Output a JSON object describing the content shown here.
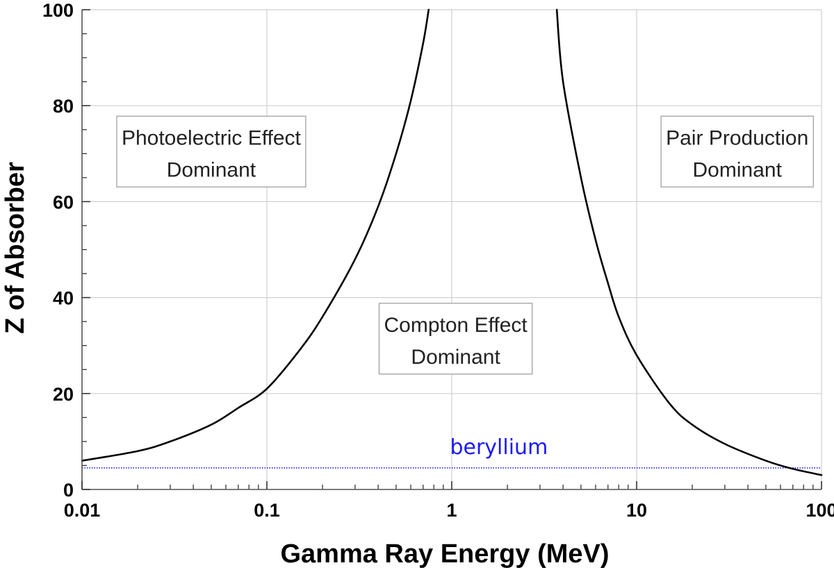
{
  "chart_data": {
    "type": "line",
    "title": "",
    "xlabel": "Gamma Ray Energy (MeV)",
    "ylabel": "Z of Absorber",
    "xscale": "log",
    "xlim": [
      0.01,
      100
    ],
    "ylim": [
      0,
      100
    ],
    "grid": true,
    "xticks": [
      {
        "value": 0.01,
        "label": "0.01"
      },
      {
        "value": 0.1,
        "label": "0.1"
      },
      {
        "value": 1,
        "label": "1"
      },
      {
        "value": 10,
        "label": "10"
      },
      {
        "value": 100,
        "label": "100"
      }
    ],
    "yticks": [
      {
        "value": 0,
        "label": "0"
      },
      {
        "value": 20,
        "label": "20"
      },
      {
        "value": 40,
        "label": "40"
      },
      {
        "value": 60,
        "label": "60"
      },
      {
        "value": 80,
        "label": "80"
      },
      {
        "value": 100,
        "label": "100"
      }
    ],
    "series": [
      {
        "name": "photoelectric-compton boundary",
        "color": "#000000",
        "x": [
          0.01,
          0.02,
          0.03,
          0.05,
          0.07,
          0.1,
          0.15,
          0.2,
          0.3,
          0.4,
          0.5,
          0.6,
          0.7,
          0.75
        ],
        "y": [
          6,
          8,
          10,
          13.5,
          17,
          21,
          29,
          36,
          48,
          59,
          70,
          81,
          93,
          100
        ]
      },
      {
        "name": "compton-pair production boundary",
        "color": "#000000",
        "x": [
          3.7,
          4,
          5,
          6,
          7,
          8,
          10,
          15,
          20,
          30,
          50,
          70,
          100
        ],
        "y": [
          100,
          85,
          65,
          52,
          43,
          36,
          28,
          18,
          13.5,
          9.5,
          6,
          4.3,
          3
        ]
      }
    ],
    "reference_lines": [
      {
        "label": "beryllium",
        "y": 4.5,
        "color": "#1a1aff"
      }
    ],
    "annotations": [
      {
        "lines": [
          "Photoelectric Effect",
          "Dominant"
        ],
        "x": 0.05,
        "y": 70
      },
      {
        "lines": [
          "Compton Effect",
          "Dominant"
        ],
        "x": 1.05,
        "y": 31
      },
      {
        "lines": [
          "Pair Production",
          "Dominant"
        ],
        "x": 35,
        "y": 70
      }
    ]
  }
}
